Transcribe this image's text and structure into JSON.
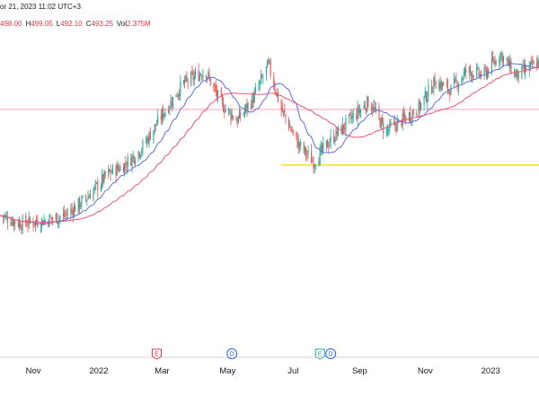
{
  "header": {
    "date_label": "or 21, 2023 11:02 UTC+3",
    "ohlc": [
      {
        "key": "",
        "value": "498.00"
      },
      {
        "key": "H",
        "value": "499.05"
      },
      {
        "key": "L",
        "value": "492.10"
      },
      {
        "key": "C",
        "value": "493.25"
      },
      {
        "key": "Vol",
        "value": "2.375M"
      }
    ]
  },
  "colors": {
    "up": "#26a69a",
    "down": "#ef5350",
    "ma_fast": "#5b6ee1",
    "ma_slow": "#e9557a",
    "hline_red": "#f4a9b3",
    "hline_yellow": "#f2d600",
    "axis": "#d1d4dc"
  },
  "events": [
    {
      "letter": "E",
      "date": "2022-02-24",
      "color": "#e53945"
    },
    {
      "letter": "D",
      "date": "2022-05-05",
      "color": "#2962ff"
    },
    {
      "letter": "E",
      "date": "2022-07-26",
      "color": "#26a69a"
    },
    {
      "letter": "D",
      "date": "2022-08-05",
      "color": "#2962ff"
    }
  ],
  "chart_data": {
    "type": "candlestick",
    "x_range": [
      "2021-10-01",
      "2023-02-15"
    ],
    "y_range": [
      410,
      525
    ],
    "x_tick_labels": [
      {
        "date": "2021-11-01",
        "label": "Nov"
      },
      {
        "date": "2022-01-01",
        "label": "2022"
      },
      {
        "date": "2022-03-01",
        "label": "Mar"
      },
      {
        "date": "2022-05-01",
        "label": "May"
      },
      {
        "date": "2022-07-01",
        "label": "Jul"
      },
      {
        "date": "2022-09-01",
        "label": "Sep"
      },
      {
        "date": "2022-11-01",
        "label": "Nov"
      },
      {
        "date": "2023-01-01",
        "label": "2023"
      }
    ],
    "horizontal_lines": [
      {
        "value": 498.0,
        "color": "red",
        "start": "2021-10-01"
      },
      {
        "value": 478.0,
        "color": "yellow",
        "start": "2022-06-20"
      }
    ],
    "price_path": [
      {
        "date": "2021-10-01",
        "price": 460
      },
      {
        "date": "2021-10-20",
        "price": 457
      },
      {
        "date": "2021-11-10",
        "price": 458
      },
      {
        "date": "2021-12-01",
        "price": 460
      },
      {
        "date": "2021-12-20",
        "price": 466
      },
      {
        "date": "2022-01-10",
        "price": 475
      },
      {
        "date": "2022-01-25",
        "price": 478
      },
      {
        "date": "2022-02-10",
        "price": 484
      },
      {
        "date": "2022-03-01",
        "price": 496
      },
      {
        "date": "2022-03-20",
        "price": 507
      },
      {
        "date": "2022-04-10",
        "price": 512
      },
      {
        "date": "2022-04-25",
        "price": 500
      },
      {
        "date": "2022-05-10",
        "price": 494
      },
      {
        "date": "2022-05-25",
        "price": 502
      },
      {
        "date": "2022-06-08",
        "price": 514
      },
      {
        "date": "2022-06-20",
        "price": 498
      },
      {
        "date": "2022-07-05",
        "price": 486
      },
      {
        "date": "2022-07-20",
        "price": 479
      },
      {
        "date": "2022-08-05",
        "price": 487
      },
      {
        "date": "2022-08-25",
        "price": 495
      },
      {
        "date": "2022-09-10",
        "price": 501
      },
      {
        "date": "2022-09-25",
        "price": 490
      },
      {
        "date": "2022-10-10",
        "price": 494
      },
      {
        "date": "2022-10-25",
        "price": 498
      },
      {
        "date": "2022-11-10",
        "price": 508
      },
      {
        "date": "2022-11-25",
        "price": 505
      },
      {
        "date": "2022-12-10",
        "price": 512
      },
      {
        "date": "2022-12-25",
        "price": 510
      },
      {
        "date": "2023-01-10",
        "price": 518
      },
      {
        "date": "2023-01-25",
        "price": 510
      },
      {
        "date": "2023-02-15",
        "price": 515
      }
    ]
  }
}
